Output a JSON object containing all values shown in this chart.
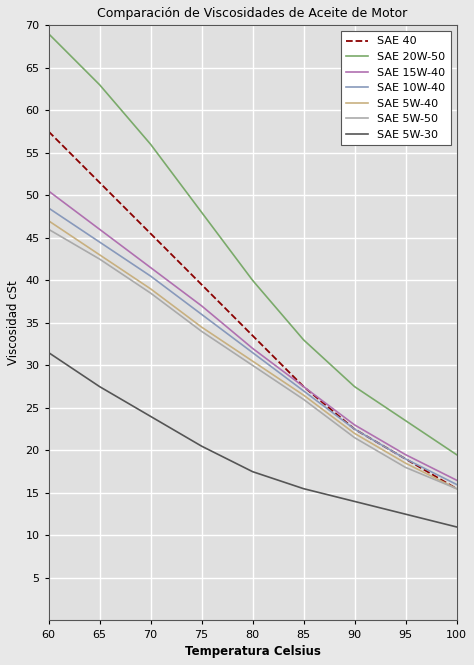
{
  "title": "Comparación de Viscosidades de Aceite de Motor",
  "xlabel": "Temperatura Celsius",
  "ylabel": "Viscosidad cSt",
  "xlim": [
    60,
    100
  ],
  "ylim": [
    0,
    70
  ],
  "xticks": [
    60,
    65,
    70,
    75,
    80,
    85,
    90,
    95,
    100
  ],
  "yticks": [
    5,
    10,
    15,
    20,
    25,
    30,
    35,
    40,
    45,
    50,
    55,
    60,
    65,
    70
  ],
  "series": [
    {
      "label": "SAE 40",
      "color": "#8B0000",
      "linestyle": "--",
      "linewidth": 1.3,
      "x": [
        60,
        65,
        70,
        75,
        80,
        85,
        90,
        95,
        100
      ],
      "y": [
        57.5,
        51.5,
        45.5,
        39.5,
        33.5,
        27.5,
        22.5,
        19.0,
        15.5
      ]
    },
    {
      "label": "SAE 20W-50",
      "color": "#7aaa6a",
      "linestyle": "-",
      "linewidth": 1.2,
      "x": [
        60,
        65,
        70,
        75,
        80,
        85,
        90,
        95,
        100
      ],
      "y": [
        69.0,
        63.0,
        56.0,
        48.0,
        40.0,
        33.0,
        27.5,
        23.5,
        19.5
      ]
    },
    {
      "label": "SAE 15W-40",
      "color": "#b070b0",
      "linestyle": "-",
      "linewidth": 1.2,
      "x": [
        60,
        65,
        70,
        75,
        80,
        85,
        90,
        95,
        100
      ],
      "y": [
        50.5,
        46.0,
        41.5,
        37.0,
        32.0,
        27.5,
        23.0,
        19.5,
        16.5
      ]
    },
    {
      "label": "SAE 10W-40",
      "color": "#8899bb",
      "linestyle": "-",
      "linewidth": 1.2,
      "x": [
        60,
        65,
        70,
        75,
        80,
        85,
        90,
        95,
        100
      ],
      "y": [
        48.5,
        44.5,
        40.5,
        36.0,
        31.5,
        27.0,
        22.5,
        19.0,
        16.0
      ]
    },
    {
      "label": "SAE 5W-40",
      "color": "#c8b080",
      "linestyle": "-",
      "linewidth": 1.2,
      "x": [
        60,
        65,
        70,
        75,
        80,
        85,
        90,
        95,
        100
      ],
      "y": [
        47.0,
        43.0,
        39.0,
        34.5,
        30.5,
        26.5,
        22.0,
        18.5,
        15.5
      ]
    },
    {
      "label": "SAE 5W-50",
      "color": "#aaaaaa",
      "linestyle": "-",
      "linewidth": 1.2,
      "x": [
        60,
        65,
        70,
        75,
        80,
        85,
        90,
        95,
        100
      ],
      "y": [
        46.0,
        42.5,
        38.5,
        34.0,
        30.0,
        26.0,
        21.5,
        18.0,
        15.5
      ]
    },
    {
      "label": "SAE 5W-30",
      "color": "#555555",
      "linestyle": "-",
      "linewidth": 1.2,
      "x": [
        60,
        65,
        70,
        75,
        80,
        85,
        90,
        95,
        100
      ],
      "y": [
        31.5,
        27.5,
        24.0,
        20.5,
        17.5,
        15.5,
        14.0,
        12.5,
        11.0
      ]
    }
  ],
  "background_color": "#e8e8e8",
  "plot_bg_color": "#e0e0e0",
  "grid_color": "#ffffff",
  "grid_linewidth": 1.0,
  "legend_loc": "upper right"
}
